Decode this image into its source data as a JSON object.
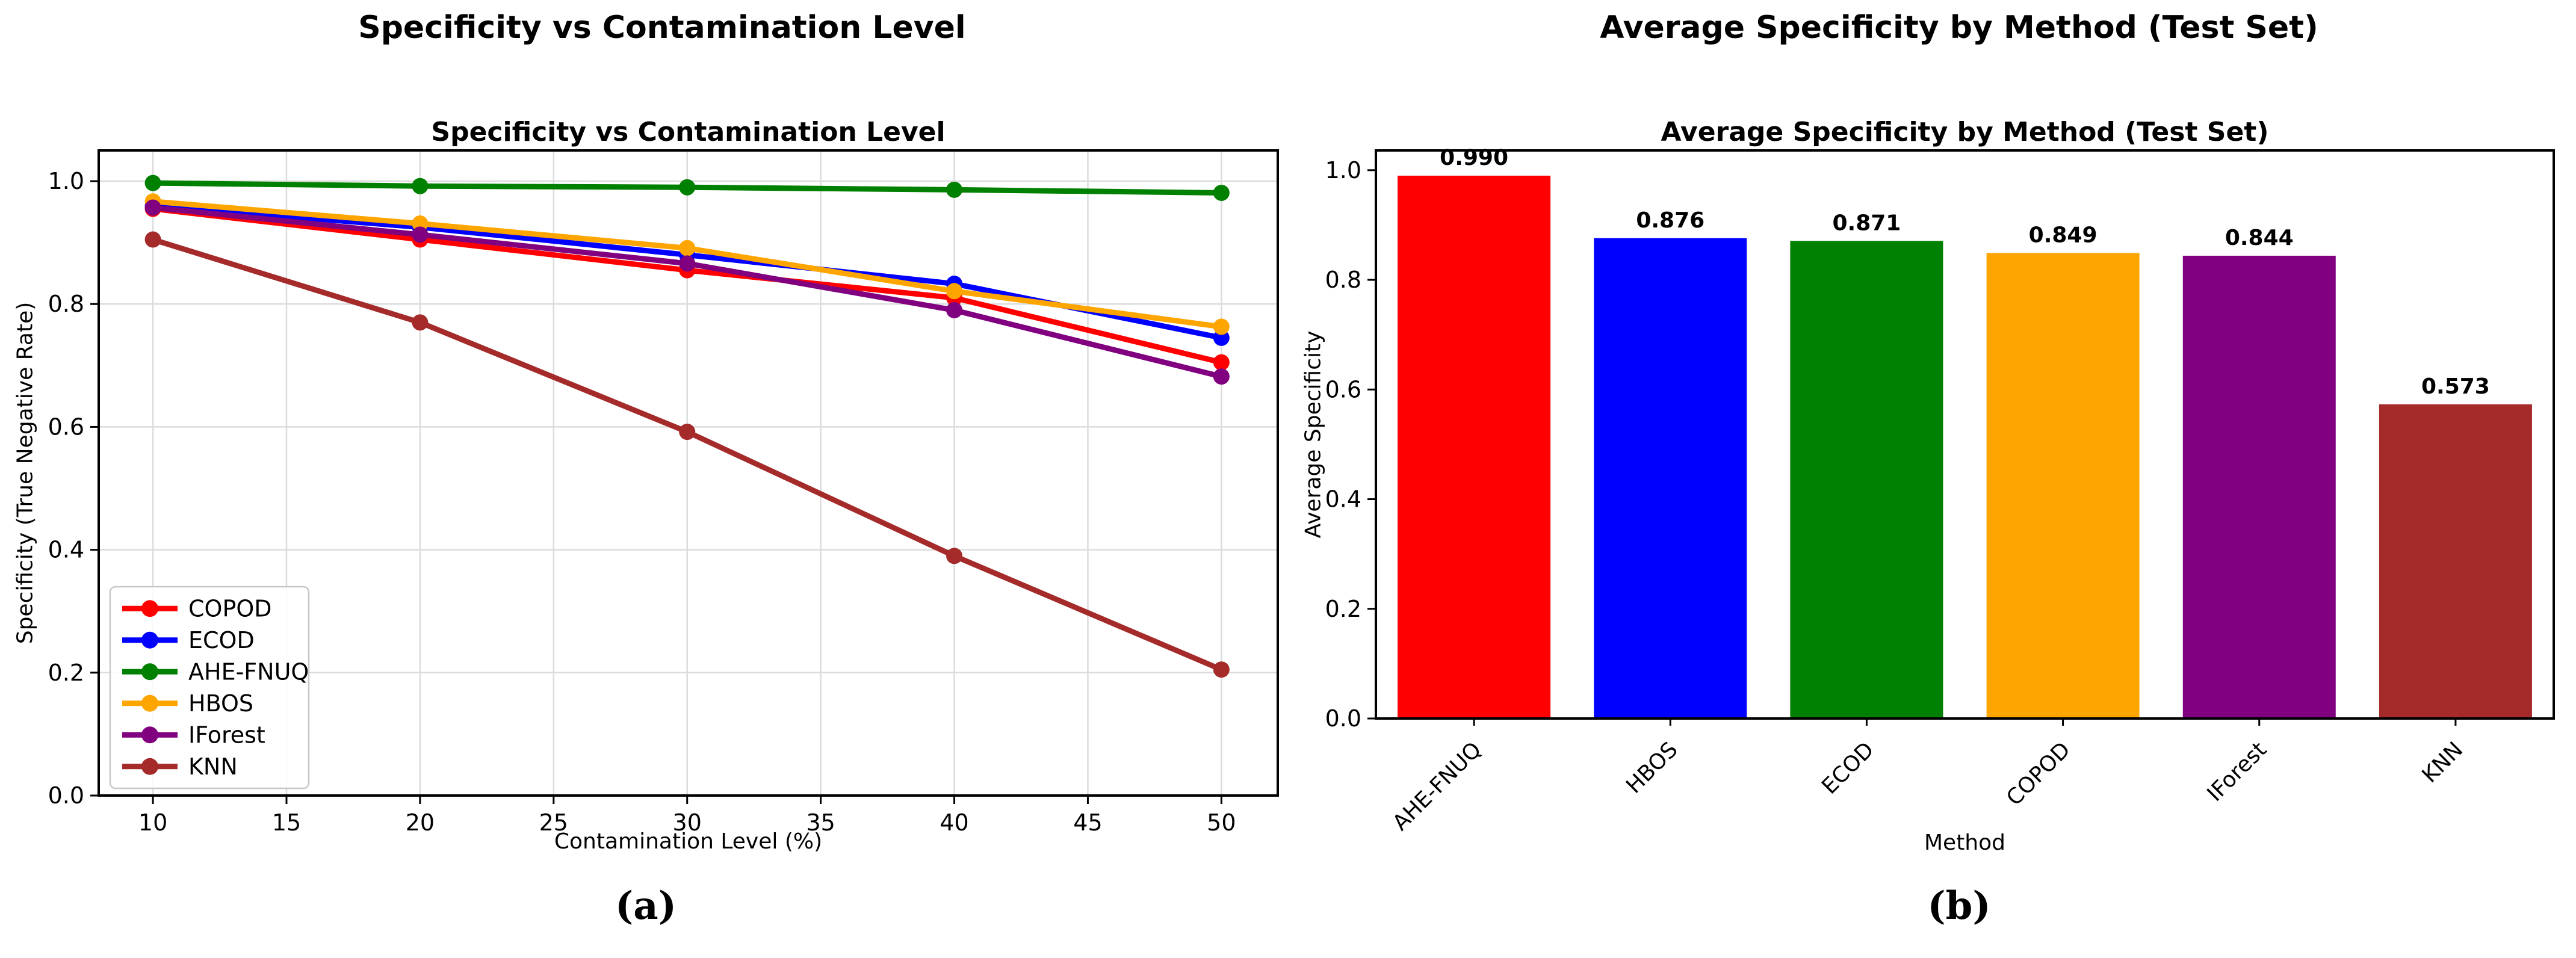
{
  "panels": [
    {
      "suptitle": "Specificity vs Contamination Level",
      "caption": "(a)"
    },
    {
      "suptitle": "Average Specificity by Method (Test Set)",
      "caption": "(b)"
    }
  ],
  "chart_data": [
    {
      "type": "line",
      "title": "Specificity vs Contamination Level",
      "xlabel": "Contamination Level (%)",
      "ylabel": "Specificity (True Negative Rate)",
      "x": [
        10,
        20,
        30,
        40,
        50
      ],
      "xticks": [
        10,
        15,
        20,
        25,
        30,
        35,
        40,
        45,
        50
      ],
      "yticks": [
        "0.0",
        "0.2",
        "0.4",
        "0.6",
        "0.8",
        "1.0"
      ],
      "ytick_values": [
        0.0,
        0.2,
        0.4,
        0.6,
        0.8,
        1.0
      ],
      "xlim": [
        7.97,
        52.11
      ],
      "ylim": [
        0,
        1.05
      ],
      "grid": true,
      "grid_color": "#DCDCDC",
      "legend_position": "lower left",
      "series": [
        {
          "name": "COPOD",
          "color": "#FF0000",
          "values": [
            0.955,
            0.905,
            0.855,
            0.81,
            0.705
          ]
        },
        {
          "name": "ECOD",
          "color": "#0000FF",
          "values": [
            0.96,
            0.925,
            0.88,
            0.833,
            0.745
          ]
        },
        {
          "name": "AHE-FNUQ",
          "color": "#008000",
          "values": [
            0.997,
            0.992,
            0.99,
            0.986,
            0.981
          ]
        },
        {
          "name": "HBOS",
          "color": "#FFA500",
          "values": [
            0.967,
            0.931,
            0.891,
            0.821,
            0.763
          ]
        },
        {
          "name": "IForest",
          "color": "#800080",
          "values": [
            0.957,
            0.913,
            0.866,
            0.79,
            0.682
          ]
        },
        {
          "name": "KNN",
          "color": "#A52A2A",
          "values": [
            0.905,
            0.77,
            0.592,
            0.39,
            0.205
          ]
        }
      ]
    },
    {
      "type": "bar",
      "title": "Average Specificity by Method (Test Set)",
      "xlabel": "Method",
      "ylabel": "Average Specificity",
      "categories": [
        "AHE-FNUQ",
        "HBOS",
        "ECOD",
        "COPOD",
        "IForest",
        "KNN"
      ],
      "values": [
        0.99,
        0.876,
        0.871,
        0.849,
        0.844,
        0.573
      ],
      "value_labels": [
        "0.990",
        "0.876",
        "0.871",
        "0.849",
        "0.844",
        "0.573"
      ],
      "colors": [
        "#FF0000",
        "#0000FF",
        "#008000",
        "#FFA500",
        "#800080",
        "#A52A2A"
      ],
      "yticks": [
        "0.0",
        "0.2",
        "0.4",
        "0.6",
        "0.8",
        "1.0"
      ],
      "ytick_values": [
        0.0,
        0.2,
        0.4,
        0.6,
        0.8,
        1.0
      ],
      "ylim": [
        0,
        1.036
      ],
      "grid": false
    }
  ]
}
